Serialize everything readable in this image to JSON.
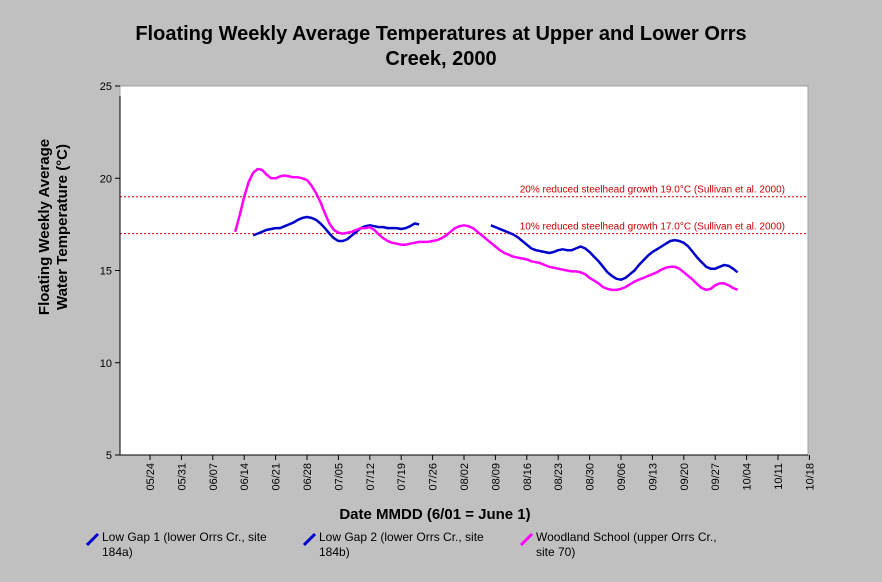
{
  "chart_data": {
    "type": "line",
    "title_lines": [
      "Floating Weekly Average Temperatures at Upper and Lower Orrs",
      "Creek, 2000"
    ],
    "xlabel": "Date MMDD (6/01 = June 1)",
    "ylabel_lines": [
      "Floating Weekly Average",
      "Water Temperature (°C)"
    ],
    "ylim": [
      5,
      25
    ],
    "yticks": [
      5,
      10,
      15,
      20,
      25
    ],
    "xlim": [
      "2000-05-24",
      "2000-10-25"
    ],
    "xticks": [
      "05/24",
      "05/31",
      "06/07",
      "06/14",
      "06/21",
      "06/28",
      "07/05",
      "07/12",
      "07/19",
      "07/26",
      "08/02",
      "08/09",
      "08/16",
      "08/23",
      "08/30",
      "09/06",
      "09/13",
      "09/20",
      "09/27",
      "10/04",
      "10/11",
      "10/18"
    ],
    "reference_lines": [
      {
        "y": 19.0,
        "label": "20% reduced steelhead growth 19.0°C (Sullivan et al. 2000)",
        "color": "#cc0000"
      },
      {
        "y": 17.0,
        "label": "10% reduced steelhead growth 17.0°C (Sullivan et al. 2000)",
        "color": "#cc0000"
      }
    ],
    "series": [
      {
        "name": "Low Gap 1 (lower Orrs Cr., site 184a)",
        "color": "#0000cc",
        "points": []
      },
      {
        "name": "Low Gap 2 (lower Orrs Cr., site 184b)",
        "color": "#0000cc",
        "points": [
          [
            "2000-06-16",
            16.9
          ],
          [
            "2000-06-17",
            17.0
          ],
          [
            "2000-06-18",
            17.1
          ],
          [
            "2000-06-19",
            17.2
          ],
          [
            "2000-06-20",
            17.25
          ],
          [
            "2000-06-21",
            17.3
          ],
          [
            "2000-06-22",
            17.3
          ],
          [
            "2000-06-23",
            17.4
          ],
          [
            "2000-06-24",
            17.5
          ],
          [
            "2000-06-25",
            17.6
          ],
          [
            "2000-06-26",
            17.75
          ],
          [
            "2000-06-27",
            17.85
          ],
          [
            "2000-06-28",
            17.9
          ],
          [
            "2000-06-29",
            17.85
          ],
          [
            "2000-06-30",
            17.75
          ],
          [
            "2000-07-01",
            17.55
          ],
          [
            "2000-07-02",
            17.3
          ],
          [
            "2000-07-03",
            17.0
          ],
          [
            "2000-07-04",
            16.75
          ],
          [
            "2000-07-05",
            16.6
          ],
          [
            "2000-07-06",
            16.6
          ],
          [
            "2000-07-07",
            16.7
          ],
          [
            "2000-07-08",
            16.9
          ],
          [
            "2000-07-09",
            17.1
          ],
          [
            "2000-07-10",
            17.3
          ],
          [
            "2000-07-11",
            17.4
          ],
          [
            "2000-07-12",
            17.45
          ],
          [
            "2000-07-13",
            17.4
          ],
          [
            "2000-07-14",
            17.35
          ],
          [
            "2000-07-15",
            17.35
          ],
          [
            "2000-07-16",
            17.3
          ],
          [
            "2000-07-17",
            17.3
          ],
          [
            "2000-07-18",
            17.3
          ],
          [
            "2000-07-19",
            17.25
          ],
          [
            "2000-07-20",
            17.3
          ],
          [
            "2000-07-21",
            17.4
          ],
          [
            "2000-07-22",
            17.55
          ],
          [
            "2000-07-23",
            17.5
          ],
          null,
          [
            "2000-08-08",
            17.45
          ],
          [
            "2000-08-09",
            17.35
          ],
          [
            "2000-08-10",
            17.25
          ],
          [
            "2000-08-11",
            17.15
          ],
          [
            "2000-08-12",
            17.05
          ],
          [
            "2000-08-13",
            16.95
          ],
          [
            "2000-08-14",
            16.8
          ],
          [
            "2000-08-15",
            16.6
          ],
          [
            "2000-08-16",
            16.4
          ],
          [
            "2000-08-17",
            16.2
          ],
          [
            "2000-08-18",
            16.1
          ],
          [
            "2000-08-19",
            16.05
          ],
          [
            "2000-08-20",
            16.0
          ],
          [
            "2000-08-21",
            15.95
          ],
          [
            "2000-08-22",
            16.0
          ],
          [
            "2000-08-23",
            16.1
          ],
          [
            "2000-08-24",
            16.15
          ],
          [
            "2000-08-25",
            16.1
          ],
          [
            "2000-08-26",
            16.1
          ],
          [
            "2000-08-27",
            16.2
          ],
          [
            "2000-08-28",
            16.3
          ],
          [
            "2000-08-29",
            16.2
          ],
          [
            "2000-08-30",
            16.0
          ],
          [
            "2000-08-31",
            15.75
          ],
          [
            "2000-09-01",
            15.5
          ],
          [
            "2000-09-02",
            15.2
          ],
          [
            "2000-09-03",
            14.9
          ],
          [
            "2000-09-04",
            14.7
          ],
          [
            "2000-09-05",
            14.55
          ],
          [
            "2000-09-06",
            14.5
          ],
          [
            "2000-09-07",
            14.6
          ],
          [
            "2000-09-08",
            14.8
          ],
          [
            "2000-09-09",
            15.0
          ],
          [
            "2000-09-10",
            15.3
          ],
          [
            "2000-09-11",
            15.55
          ],
          [
            "2000-09-12",
            15.8
          ],
          [
            "2000-09-13",
            16.0
          ],
          [
            "2000-09-14",
            16.15
          ],
          [
            "2000-09-15",
            16.3
          ],
          [
            "2000-09-16",
            16.45
          ],
          [
            "2000-09-17",
            16.6
          ],
          [
            "2000-09-18",
            16.65
          ],
          [
            "2000-09-19",
            16.6
          ],
          [
            "2000-09-20",
            16.5
          ],
          [
            "2000-09-21",
            16.3
          ],
          [
            "2000-09-22",
            16.0
          ],
          [
            "2000-09-23",
            15.7
          ],
          [
            "2000-09-24",
            15.45
          ],
          [
            "2000-09-25",
            15.2
          ],
          [
            "2000-09-26",
            15.1
          ],
          [
            "2000-09-27",
            15.1
          ],
          [
            "2000-09-28",
            15.2
          ],
          [
            "2000-09-29",
            15.3
          ],
          [
            "2000-09-30",
            15.25
          ],
          [
            "2000-10-01",
            15.1
          ],
          [
            "2000-10-02",
            14.9
          ]
        ]
      },
      {
        "name": "Woodland School (upper Orrs Cr., site 70)",
        "color": "#ff00ff",
        "points": [
          [
            "2000-06-12",
            17.1
          ],
          [
            "2000-06-13",
            18.0
          ],
          [
            "2000-06-14",
            19.0
          ],
          [
            "2000-06-15",
            19.8
          ],
          [
            "2000-06-16",
            20.3
          ],
          [
            "2000-06-17",
            20.5
          ],
          [
            "2000-06-18",
            20.45
          ],
          [
            "2000-06-19",
            20.2
          ],
          [
            "2000-06-20",
            20.0
          ],
          [
            "2000-06-21",
            20.0
          ],
          [
            "2000-06-22",
            20.1
          ],
          [
            "2000-06-23",
            20.15
          ],
          [
            "2000-06-24",
            20.1
          ],
          [
            "2000-06-25",
            20.05
          ],
          [
            "2000-06-26",
            20.05
          ],
          [
            "2000-06-27",
            20.0
          ],
          [
            "2000-06-28",
            19.9
          ],
          [
            "2000-06-29",
            19.6
          ],
          [
            "2000-06-30",
            19.2
          ],
          [
            "2000-07-01",
            18.7
          ],
          [
            "2000-07-02",
            18.1
          ],
          [
            "2000-07-03",
            17.55
          ],
          [
            "2000-07-04",
            17.2
          ],
          [
            "2000-07-05",
            17.05
          ],
          [
            "2000-07-06",
            17.0
          ],
          [
            "2000-07-07",
            17.05
          ],
          [
            "2000-07-08",
            17.1
          ],
          [
            "2000-07-09",
            17.2
          ],
          [
            "2000-07-10",
            17.3
          ],
          [
            "2000-07-11",
            17.3
          ],
          [
            "2000-07-12",
            17.35
          ],
          [
            "2000-07-13",
            17.2
          ],
          [
            "2000-07-14",
            16.95
          ],
          [
            "2000-07-15",
            16.75
          ],
          [
            "2000-07-16",
            16.6
          ],
          [
            "2000-07-17",
            16.5
          ],
          [
            "2000-07-18",
            16.45
          ],
          [
            "2000-07-19",
            16.4
          ],
          [
            "2000-07-20",
            16.4
          ],
          [
            "2000-07-21",
            16.45
          ],
          [
            "2000-07-22",
            16.5
          ],
          [
            "2000-07-23",
            16.55
          ],
          [
            "2000-07-24",
            16.55
          ],
          [
            "2000-07-25",
            16.55
          ],
          [
            "2000-07-26",
            16.6
          ],
          [
            "2000-07-27",
            16.65
          ],
          [
            "2000-07-28",
            16.75
          ],
          [
            "2000-07-29",
            16.9
          ],
          [
            "2000-07-30",
            17.1
          ],
          [
            "2000-07-31",
            17.3
          ],
          [
            "2000-08-01",
            17.4
          ],
          [
            "2000-08-02",
            17.45
          ],
          [
            "2000-08-03",
            17.4
          ],
          [
            "2000-08-04",
            17.3
          ],
          [
            "2000-08-05",
            17.1
          ],
          [
            "2000-08-06",
            16.9
          ],
          [
            "2000-08-07",
            16.7
          ],
          [
            "2000-08-08",
            16.5
          ],
          [
            "2000-08-09",
            16.3
          ],
          [
            "2000-08-10",
            16.1
          ],
          [
            "2000-08-11",
            15.95
          ],
          [
            "2000-08-12",
            15.85
          ],
          [
            "2000-08-13",
            15.75
          ],
          [
            "2000-08-14",
            15.7
          ],
          [
            "2000-08-15",
            15.65
          ],
          [
            "2000-08-16",
            15.6
          ],
          [
            "2000-08-17",
            15.5
          ],
          [
            "2000-08-18",
            15.45
          ],
          [
            "2000-08-19",
            15.4
          ],
          [
            "2000-08-20",
            15.3
          ],
          [
            "2000-08-21",
            15.2
          ],
          [
            "2000-08-22",
            15.15
          ],
          [
            "2000-08-23",
            15.1
          ],
          [
            "2000-08-24",
            15.05
          ],
          [
            "2000-08-25",
            15.0
          ],
          [
            "2000-08-26",
            14.95
          ],
          [
            "2000-08-27",
            14.95
          ],
          [
            "2000-08-28",
            14.9
          ],
          [
            "2000-08-29",
            14.8
          ],
          [
            "2000-08-30",
            14.6
          ],
          [
            "2000-08-31",
            14.45
          ],
          [
            "2000-09-01",
            14.3
          ],
          [
            "2000-09-02",
            14.1
          ],
          [
            "2000-09-03",
            14.0
          ],
          [
            "2000-09-04",
            13.95
          ],
          [
            "2000-09-05",
            13.95
          ],
          [
            "2000-09-06",
            14.0
          ],
          [
            "2000-09-07",
            14.1
          ],
          [
            "2000-09-08",
            14.25
          ],
          [
            "2000-09-09",
            14.4
          ],
          [
            "2000-09-10",
            14.5
          ],
          [
            "2000-09-11",
            14.6
          ],
          [
            "2000-09-12",
            14.7
          ],
          [
            "2000-09-13",
            14.8
          ],
          [
            "2000-09-14",
            14.9
          ],
          [
            "2000-09-15",
            15.05
          ],
          [
            "2000-09-16",
            15.15
          ],
          [
            "2000-09-17",
            15.2
          ],
          [
            "2000-09-18",
            15.2
          ],
          [
            "2000-09-19",
            15.1
          ],
          [
            "2000-09-20",
            14.9
          ],
          [
            "2000-09-21",
            14.7
          ],
          [
            "2000-09-22",
            14.5
          ],
          [
            "2000-09-23",
            14.25
          ],
          [
            "2000-09-24",
            14.05
          ],
          [
            "2000-09-25",
            13.95
          ],
          [
            "2000-09-26",
            14.0
          ],
          [
            "2000-09-27",
            14.2
          ],
          [
            "2000-09-28",
            14.3
          ],
          [
            "2000-09-29",
            14.3
          ],
          [
            "2000-09-30",
            14.2
          ],
          [
            "2000-10-01",
            14.05
          ],
          [
            "2000-10-02",
            13.95
          ]
        ]
      }
    ],
    "grid": false
  },
  "legend": {
    "items": [
      {
        "label": "Low Gap 1 (lower Orrs Cr., site 184a)",
        "color": "#0000cc"
      },
      {
        "label": "Low Gap 2 (lower Orrs Cr., site 184b)",
        "color": "#0000cc"
      },
      {
        "label": "Woodland School (upper Orrs Cr., site 70)",
        "color": "#ff00ff"
      }
    ]
  }
}
